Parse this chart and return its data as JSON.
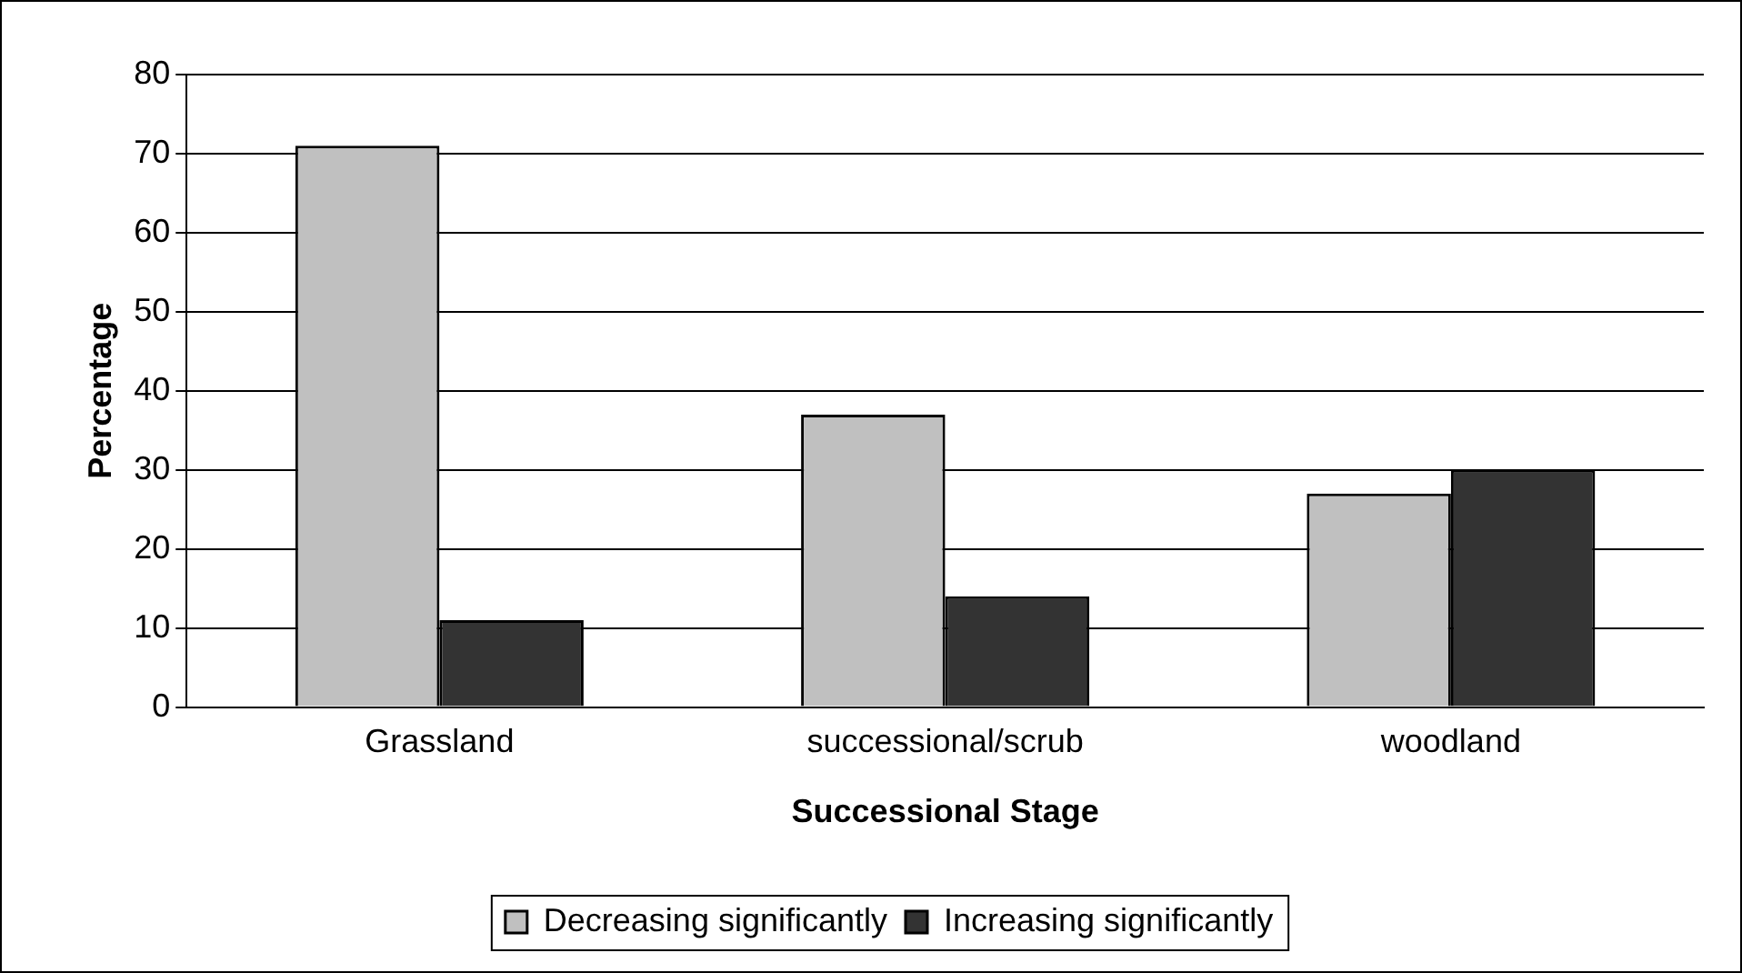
{
  "chart_data": {
    "type": "bar",
    "xlabel": "Successional Stage",
    "ylabel": "Percentage",
    "categories": [
      "Grassland",
      "successional/scrub",
      "woodland"
    ],
    "series": [
      {
        "name": "Decreasing significantly",
        "color": "#c0c0c0",
        "values": [
          71,
          37,
          27
        ]
      },
      {
        "name": "Increasing significantly",
        "color": "#333333",
        "values": [
          11,
          14,
          30
        ]
      }
    ],
    "ylim": [
      0,
      80
    ],
    "yticks": [
      0,
      10,
      20,
      30,
      40,
      50,
      60,
      70,
      80
    ],
    "grid": "y",
    "legend": "bottom"
  }
}
